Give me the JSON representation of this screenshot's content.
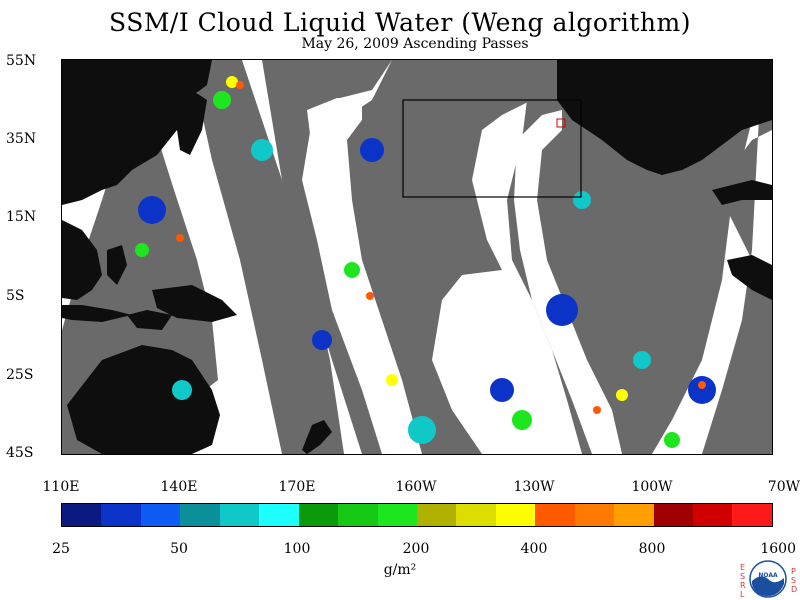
{
  "title": "SSM/I Cloud Liquid Water (Weng algorithm)",
  "subtitle": "May 26, 2009  Ascending Passes",
  "lat_labels": [
    "55N",
    "35N",
    "15N",
    "5S",
    "25S",
    "45S"
  ],
  "lon_labels": [
    "110E",
    "140E",
    "170E",
    "160W",
    "130W",
    "100W",
    "70W"
  ],
  "colorbar": {
    "ticks": [
      "25",
      "50",
      "100",
      "200",
      "400",
      "800",
      "1600"
    ],
    "colors": [
      "#0a1a80",
      "#0b33c8",
      "#0f5cf5",
      "#0b8f98",
      "#10c8c8",
      "#1effff",
      "#0a9a0a",
      "#14c814",
      "#1ee61e",
      "#b0b000",
      "#dddd00",
      "#ffff00",
      "#ff5a00",
      "#ff7a00",
      "#ffa000",
      "#a00000",
      "#d00000",
      "#ff1a1a"
    ],
    "units": "g/m²"
  },
  "logo": {
    "left_letters": [
      "E",
      "S",
      "R",
      "L"
    ],
    "right_letters": [
      "P",
      "S",
      "D"
    ],
    "emblem": "NOAA"
  }
}
